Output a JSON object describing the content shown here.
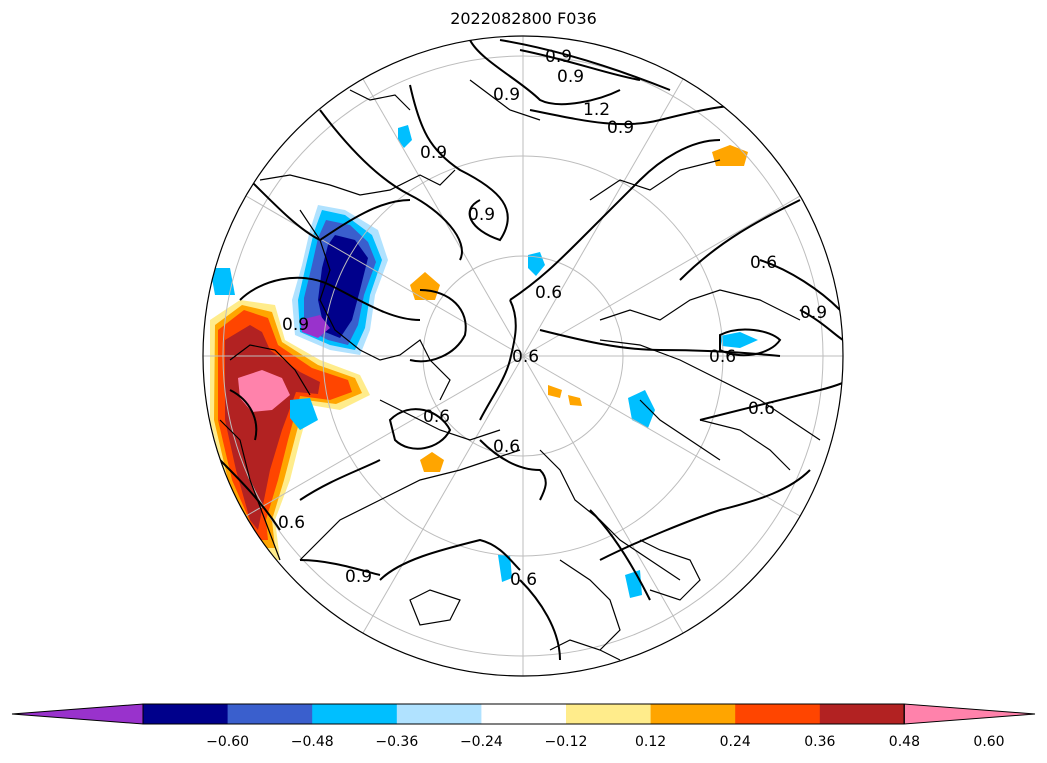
{
  "title": "2022082800 F036",
  "contour_labels": [
    "0.9",
    "0.9",
    "1.2",
    "0.9",
    "0.9",
    "0.9",
    "0.6",
    "0.6",
    "0.6",
    "0.6",
    "0.6",
    "0.6",
    "0.9",
    "0.6",
    "0.9",
    "0.6",
    "0.6",
    "0.9",
    "0.9"
  ],
  "colorbar": {
    "colors": [
      "#9932cc",
      "#00008b",
      "#3a5fcd",
      "#00bfff",
      "#b0e2ff",
      "#ffffff",
      "#ffec8b",
      "#ffa500",
      "#ff4500",
      "#b22222",
      "#ff82ab"
    ],
    "extend": "both",
    "ticks": [
      "−0.60",
      "−0.48",
      "−0.36",
      "−0.24",
      "−0.12",
      "0.12",
      "0.24",
      "0.36",
      "0.48",
      "0.60"
    ]
  }
}
